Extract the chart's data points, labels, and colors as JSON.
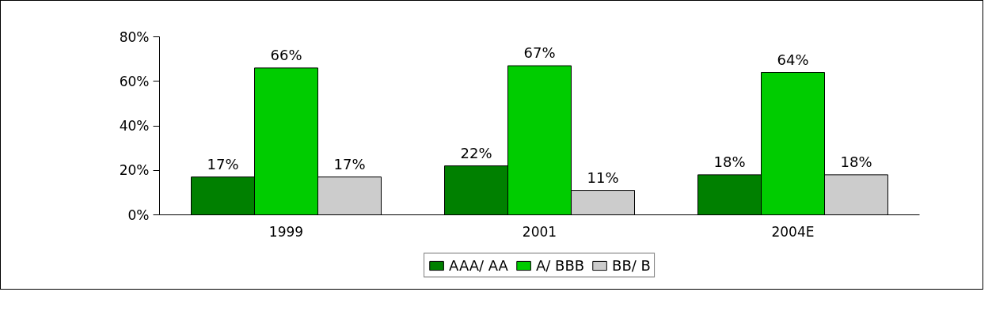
{
  "chart_data": {
    "type": "bar",
    "categories": [
      "1999",
      "2001",
      "2004E"
    ],
    "series": [
      {
        "name": "AAA/ AA",
        "color": "#008000",
        "values": [
          17,
          22,
          18
        ],
        "value_labels": [
          "17%",
          "22%",
          "18%"
        ]
      },
      {
        "name": "A/ BBB",
        "color": "#00cc00",
        "values": [
          66,
          67,
          64
        ],
        "value_labels": [
          "66%",
          "67%",
          "64%"
        ]
      },
      {
        "name": "BB/ B",
        "color": "#cccccc",
        "values": [
          17,
          11,
          18
        ],
        "value_labels": [
          "17%",
          "11%",
          "18%"
        ]
      }
    ],
    "ylim": [
      0,
      80
    ],
    "yticks": [
      {
        "value": 0,
        "label": "0%"
      },
      {
        "value": 20,
        "label": "20%"
      },
      {
        "value": 40,
        "label": "40%"
      },
      {
        "value": 60,
        "label": "60%"
      },
      {
        "value": 80,
        "label": "80%"
      }
    ],
    "grid": false,
    "legend": "bottom"
  }
}
